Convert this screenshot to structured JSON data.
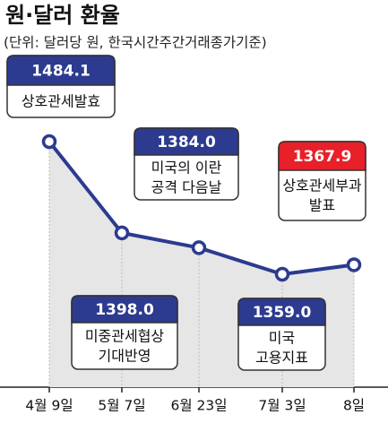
{
  "chart_data": {
    "type": "line",
    "title": "원·달러 환율",
    "subtitle": "(단위: 달러당 원, 한국시간주간거래종가기준)",
    "categories": [
      "4월 9일",
      "5월 7일",
      "6월 23일",
      "7월 3일",
      "8일"
    ],
    "values": [
      1484.1,
      1398.0,
      1384.0,
      1359.0,
      1367.9
    ],
    "value_labels": [
      "1484.1",
      "1398.0",
      "1384.0",
      "1359.0",
      "1367.9"
    ],
    "annotations": [
      [
        "상호관세발효"
      ],
      [
        "미중관세협상",
        "기대반영"
      ],
      [
        "미국의 이란",
        "공격 다음날"
      ],
      [
        "미국",
        "고용지표"
      ],
      [
        "상호관세부과",
        "발표"
      ]
    ],
    "color": "#2c3b8f",
    "label_colors": [
      "#2c3b8f",
      "#2c3b8f",
      "#2c3b8f",
      "#2c3b8f",
      "#e8202a"
    ],
    "area_color": "#e6e6e6"
  }
}
